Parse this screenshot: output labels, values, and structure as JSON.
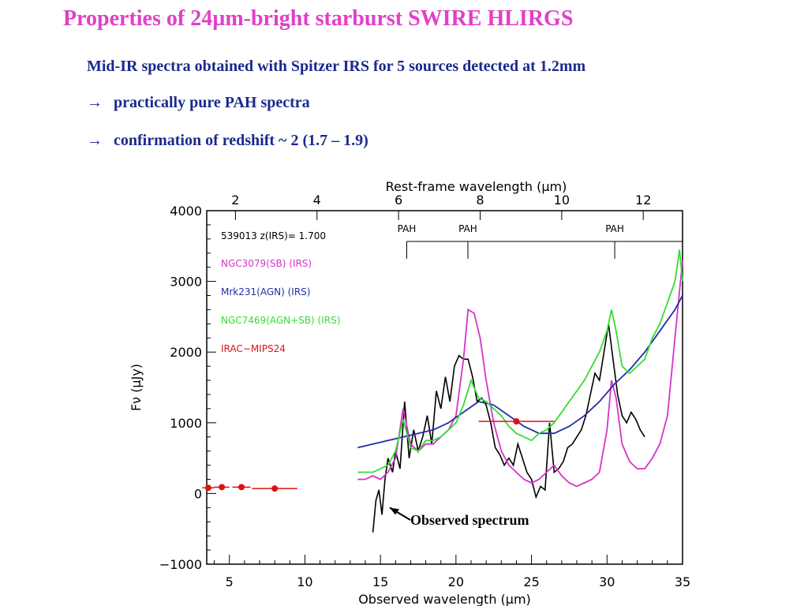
{
  "slide": {
    "title": "Properties of 24µm-bright starburst SWIRE HLIRGS",
    "line1": "Mid-IR spectra obtained with Spitzer IRS for 5 sources detected at 1.2mm",
    "line2_arrow": "→",
    "line2": "practically pure PAH spectra",
    "line3_arrow": "→",
    "line3": "confirmation of redshift ~ 2  (1.7 – 1.9)"
  },
  "chart_data": {
    "type": "line",
    "title": "",
    "xlabel": "Observed wavelength (µm)",
    "ylabel": "Fν (µJy)",
    "top_xlabel": "Rest-frame wavelength (µm)",
    "xlim": [
      3.5,
      35
    ],
    "ylim": [
      -1000,
      4000
    ],
    "x_ticks": [
      5,
      10,
      15,
      20,
      25,
      30,
      35
    ],
    "y_ticks": [
      -1000,
      0,
      1000,
      2000,
      3000,
      4000
    ],
    "y_tick_labels": [
      "−1000",
      "0",
      "1000",
      "2000",
      "3000",
      "4000"
    ],
    "top_ticks": [
      2,
      4,
      6,
      8,
      10,
      12
    ],
    "redshift": 1.7,
    "pah_labels": [
      {
        "label": "PAH",
        "rest": 6.2
      },
      {
        "label": "PAH",
        "rest": 7.7
      },
      {
        "label": "PAH",
        "rest": 11.3
      }
    ],
    "legend_title": "539013 z(IRS)= 1.700",
    "legend_position": "top-left",
    "colors": {
      "observed": "#000000",
      "sb": "#d633c8",
      "agn": "#1f2fa8",
      "agnsb": "#33dd33",
      "photometry": "#dd1111",
      "pah": "#000000"
    },
    "series": [
      {
        "key": "observed",
        "x": [
          14.5,
          14.7,
          14.9,
          15.1,
          15.3,
          15.5,
          15.8,
          16.0,
          16.3,
          16.6,
          16.9,
          17.2,
          17.5,
          17.8,
          18.1,
          18.4,
          18.7,
          19.0,
          19.3,
          19.6,
          19.9,
          20.2,
          20.5,
          20.8,
          21.1,
          21.4,
          21.7,
          22.0,
          22.3,
          22.6,
          22.9,
          23.2,
          23.5,
          23.8,
          24.1,
          24.4,
          24.7,
          25.0,
          25.3,
          25.6,
          25.9,
          26.2,
          26.5,
          26.8,
          27.1,
          27.4,
          27.7,
          28.0,
          28.3,
          28.6,
          28.9,
          29.2,
          29.5,
          29.8,
          30.1,
          30.4,
          30.7,
          31.0,
          31.3,
          31.6,
          31.9,
          32.2,
          32.5
        ],
        "y": [
          -550,
          -100,
          50,
          -300,
          200,
          500,
          300,
          600,
          350,
          1300,
          500,
          900,
          600,
          800,
          1100,
          700,
          1450,
          1200,
          1650,
          1300,
          1800,
          1950,
          1900,
          1900,
          1650,
          1300,
          1350,
          1250,
          1000,
          650,
          550,
          400,
          500,
          400,
          700,
          500,
          300,
          200,
          -50,
          100,
          50,
          1000,
          300,
          350,
          450,
          650,
          700,
          800,
          900,
          1100,
          1400,
          1700,
          1600,
          2000,
          2400,
          1900,
          1400,
          1100,
          1000,
          1150,
          1050,
          900,
          800
        ]
      },
      {
        "key": "sb",
        "x": [
          13.5,
          14.0,
          14.5,
          15.0,
          15.5,
          16.0,
          16.5,
          17.0,
          17.5,
          18.0,
          18.5,
          19.0,
          19.5,
          20.0,
          20.5,
          20.8,
          21.2,
          21.6,
          22.0,
          22.5,
          23.0,
          23.5,
          24.0,
          24.5,
          25.0,
          25.5,
          26.0,
          26.5,
          27.0,
          27.5,
          28.0,
          28.5,
          29.0,
          29.5,
          30.0,
          30.3,
          30.6,
          31.0,
          31.5,
          32.0,
          32.5,
          33.0,
          33.5,
          34.0,
          34.5,
          35.0
        ],
        "y": [
          200,
          200,
          250,
          200,
          300,
          500,
          1200,
          700,
          600,
          700,
          700,
          800,
          900,
          1100,
          1900,
          2600,
          2550,
          2200,
          1600,
          1000,
          600,
          400,
          300,
          200,
          150,
          200,
          300,
          400,
          250,
          150,
          100,
          150,
          200,
          300,
          900,
          1600,
          1350,
          700,
          450,
          350,
          350,
          500,
          700,
          1100,
          2200,
          3300
        ]
      },
      {
        "key": "agn",
        "x": [
          13.5,
          14.5,
          15.5,
          16.5,
          17.5,
          18.5,
          19.5,
          20.5,
          21.5,
          22.5,
          23.5,
          24.5,
          25.5,
          26.5,
          27.5,
          28.5,
          29.5,
          30.5,
          31.5,
          32.5,
          33.5,
          34.5,
          35.0
        ],
        "y": [
          650,
          700,
          750,
          800,
          850,
          900,
          1000,
          1150,
          1300,
          1250,
          1100,
          950,
          850,
          850,
          950,
          1100,
          1300,
          1550,
          1750,
          2000,
          2300,
          2600,
          2800
        ]
      },
      {
        "key": "agnsb",
        "x": [
          13.5,
          14.5,
          15.5,
          16.0,
          16.5,
          17.0,
          17.5,
          18.0,
          18.5,
          19.0,
          19.5,
          20.0,
          20.5,
          21.0,
          21.5,
          22.0,
          22.5,
          23.0,
          23.5,
          24.0,
          24.5,
          25.0,
          25.5,
          26.0,
          26.5,
          27.0,
          27.5,
          28.0,
          28.5,
          29.0,
          29.5,
          30.0,
          30.3,
          30.6,
          31.0,
          31.5,
          32.0,
          32.5,
          33.0,
          33.5,
          34.0,
          34.5,
          34.8,
          35.0
        ],
        "y": [
          300,
          300,
          400,
          600,
          1050,
          650,
          600,
          750,
          750,
          800,
          900,
          1000,
          1250,
          1600,
          1350,
          1300,
          1200,
          1100,
          950,
          850,
          800,
          750,
          850,
          900,
          1000,
          1150,
          1300,
          1450,
          1600,
          1800,
          2000,
          2300,
          2600,
          2300,
          1800,
          1700,
          1800,
          1900,
          2200,
          2400,
          2700,
          3000,
          3450,
          3000
        ]
      },
      {
        "key": "photometry",
        "x": [
          3.6,
          4.5,
          5.8,
          8.0,
          24.0
        ],
        "y": [
          80,
          90,
          90,
          70,
          1020
        ],
        "xerr": [
          0.4,
          0.5,
          0.6,
          1.5,
          2.5
        ]
      }
    ],
    "legend": [
      {
        "label": "NGC3079(SB) (IRS)",
        "color_key": "sb"
      },
      {
        "label": "Mrk231(AGN) (IRS)",
        "color_key": "agn"
      },
      {
        "label": "NGC7469(AGN+SB) (IRS)",
        "color_key": "agnsb"
      },
      {
        "label": "IRAC−MIPS24",
        "color_key": "photometry"
      }
    ],
    "annotation": {
      "text": "Observed spectrum",
      "points_to": [
        15.2,
        0
      ]
    }
  }
}
